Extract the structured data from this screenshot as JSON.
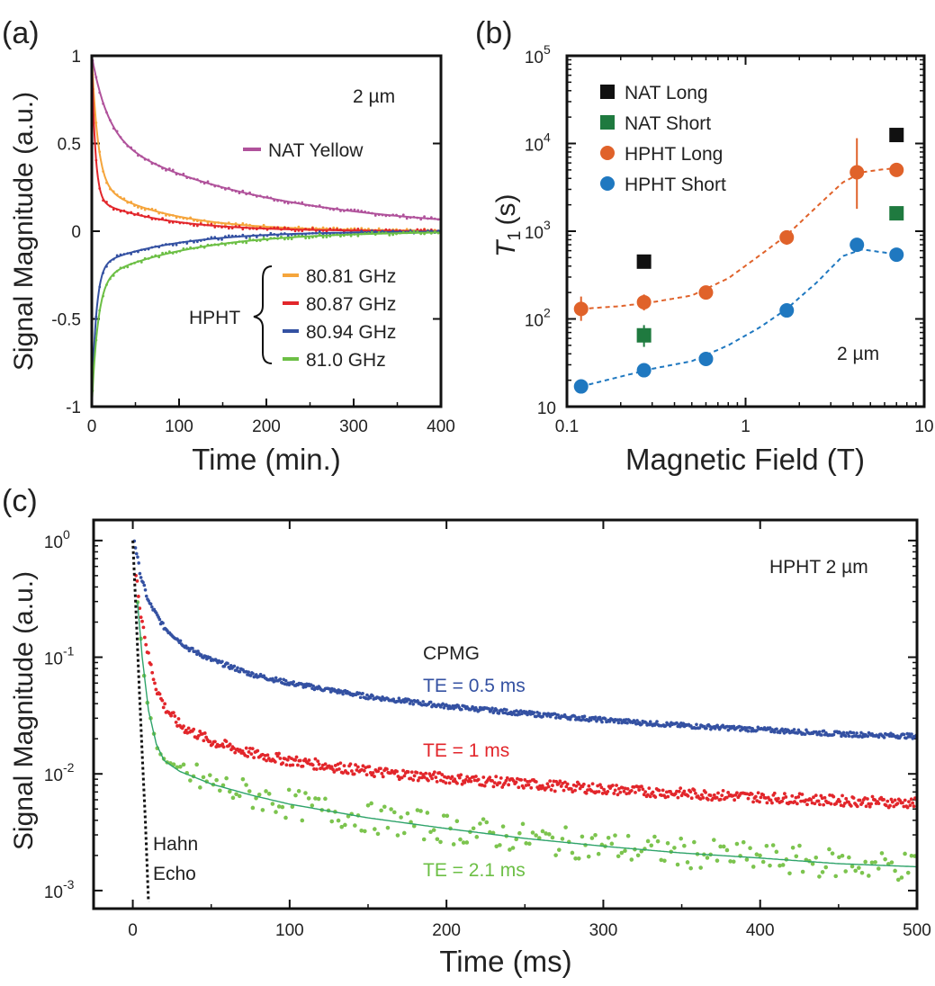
{
  "panels": {
    "a": {
      "label": "(a)"
    },
    "b": {
      "label": "(b)"
    },
    "c": {
      "label": "(c)"
    }
  },
  "chart_data": [
    {
      "id": "a",
      "type": "line",
      "xlabel": "Time (min.)",
      "ylabel": "Signal Magnitude (a.u.)",
      "xlim": [
        0,
        400
      ],
      "ylim": [
        -1,
        1
      ],
      "xticks": [
        "0",
        "100",
        "200",
        "300",
        "400"
      ],
      "yticks": [
        "-1",
        "-0.5",
        "0",
        "0.5",
        "1"
      ],
      "ytick_values": [
        -1,
        -0.5,
        0,
        0.5,
        1
      ],
      "annotation": "2 µm",
      "group_label": "HPHT",
      "series": [
        {
          "name": "NAT Yellow",
          "color": "#b0529b",
          "a1": 0.45,
          "tau1": 18,
          "a2": 0.55,
          "tau2": 190
        },
        {
          "name": "80.81 GHz",
          "color": "#f5a53c",
          "a1": 0.73,
          "tau1": 7,
          "a2": 0.27,
          "tau2": 85
        },
        {
          "name": "80.87 GHz",
          "color": "#e2262b",
          "a1": 0.82,
          "tau1": 4,
          "a2": 0.18,
          "tau2": 80
        },
        {
          "name": "80.94 GHz",
          "color": "#3451a2",
          "a1": -0.8,
          "tau1": 5,
          "a2": -0.2,
          "tau2": 90
        },
        {
          "name": "81.0 GHz",
          "color": "#6cbf45",
          "a1": -0.72,
          "tau1": 7,
          "a2": -0.28,
          "tau2": 110
        }
      ]
    },
    {
      "id": "b",
      "type": "scatter",
      "xscale": "log",
      "yscale": "log",
      "xlabel": "Magnetic Field (T)",
      "ylabel_main": "T",
      "ylabel_sub": "1",
      "ylabel_unit": "(s)",
      "xlim": [
        0.1,
        10
      ],
      "ylim": [
        10,
        100000
      ],
      "xticks": [
        "0.1",
        "1",
        "10"
      ],
      "xtick_values": [
        0.1,
        1,
        10
      ],
      "yticks": [
        "10",
        "10",
        "10",
        "10",
        "10"
      ],
      "ytick_values": [
        10,
        100,
        1000,
        10000,
        100000
      ],
      "ytick_exps": [
        "",
        "2",
        "3",
        "4",
        "5"
      ],
      "annotation": "2 µm",
      "series": [
        {
          "name": "NAT Long",
          "color": "#111111",
          "marker": "square",
          "x": [
            0.27,
            7.0
          ],
          "y": [
            450,
            12500
          ]
        },
        {
          "name": "NAT Short",
          "color": "#1f7a3f",
          "marker": "square",
          "x": [
            0.27,
            7.0
          ],
          "y": [
            65,
            1600
          ],
          "err": [
            [
              48,
              85
            ],
            null
          ]
        },
        {
          "name": "HPHT Long",
          "color": "#e0622a",
          "marker": "circle",
          "x": [
            0.12,
            0.27,
            0.6,
            1.7,
            4.2,
            7.0
          ],
          "y": [
            130,
            155,
            200,
            850,
            4700,
            5000
          ],
          "err": [
            [
              95,
              180
            ],
            [
              125,
              190
            ],
            null,
            [
              700,
              1000
            ],
            [
              1800,
              11500
            ],
            null
          ]
        },
        {
          "name": "HPHT Short",
          "color": "#1f78c0",
          "marker": "circle",
          "x": [
            0.12,
            0.27,
            0.6,
            1.7,
            4.2,
            7.0
          ],
          "y": [
            17,
            26,
            35,
            125,
            700,
            540
          ],
          "err": [
            null,
            null,
            null,
            [
              105,
              150
            ],
            null,
            null
          ]
        }
      ],
      "fits": [
        {
          "series": "HPHT Long",
          "color": "#e0622a",
          "x": [
            0.12,
            0.2,
            0.3,
            0.5,
            0.8,
            1.2,
            1.7,
            2.5,
            3.5,
            4.5,
            6.0,
            7.0
          ],
          "y": [
            130,
            140,
            155,
            185,
            290,
            530,
            900,
            1900,
            3600,
            4700,
            5100,
            5200
          ]
        },
        {
          "series": "HPHT Short",
          "color": "#1f78c0",
          "x": [
            0.12,
            0.2,
            0.3,
            0.5,
            0.8,
            1.2,
            1.7,
            2.5,
            3.5,
            4.5,
            6.0,
            7.0
          ],
          "y": [
            17,
            22,
            27,
            33,
            50,
            80,
            130,
            260,
            520,
            620,
            570,
            550
          ]
        }
      ]
    },
    {
      "id": "c",
      "type": "scatter",
      "yscale": "log",
      "xlabel": "Time (ms)",
      "ylabel": "Signal Magnitude (a.u.)",
      "xlim": [
        -25,
        500
      ],
      "ylim": [
        0.0007,
        1.5
      ],
      "xticks": [
        "0",
        "100",
        "200",
        "300",
        "400",
        "500"
      ],
      "xtick_values": [
        0,
        100,
        200,
        300,
        400,
        500
      ],
      "yticks": [
        "10",
        "10",
        "10",
        "10"
      ],
      "ytick_values": [
        1,
        0.1,
        0.01,
        0.001
      ],
      "ytick_exps": [
        "0",
        "-1",
        "-2",
        "-3"
      ],
      "annotation": "HPHT 2 µm",
      "method_label": "CPMG",
      "hahn_label_1": "Hahn",
      "hahn_label_2": "Echo",
      "series": [
        {
          "name": "TE = 0.5 ms",
          "color": "#3451a2",
          "x": [
            1,
            5,
            10,
            20,
            35,
            50,
            75,
            100,
            150,
            200,
            250,
            300,
            350,
            400,
            450,
            500
          ],
          "y": [
            1.0,
            0.5,
            0.3,
            0.18,
            0.12,
            0.095,
            0.072,
            0.06,
            0.046,
            0.038,
            0.033,
            0.029,
            0.026,
            0.024,
            0.022,
            0.021
          ]
        },
        {
          "name": "TE = 1 ms",
          "color": "#e2262b",
          "x": [
            2,
            5,
            10,
            15,
            20,
            30,
            50,
            75,
            100,
            150,
            200,
            250,
            300,
            350,
            400,
            450,
            500
          ],
          "y": [
            0.5,
            0.25,
            0.1,
            0.055,
            0.038,
            0.026,
            0.019,
            0.015,
            0.013,
            0.0105,
            0.0092,
            0.0082,
            0.0074,
            0.0068,
            0.0063,
            0.0059,
            0.0056
          ]
        },
        {
          "name": "TE = 2.1 ms",
          "color": "#6cbf45",
          "x": [
            3,
            6,
            10,
            15,
            20,
            30,
            50,
            75,
            100,
            150,
            200,
            250,
            300,
            350,
            400,
            450,
            500
          ],
          "y": [
            0.3,
            0.1,
            0.035,
            0.018,
            0.013,
            0.0105,
            0.0082,
            0.0066,
            0.0055,
            0.0042,
            0.0034,
            0.0028,
            0.0024,
            0.0021,
            0.0019,
            0.0017,
            0.0016
          ]
        },
        {
          "name": "Hahn Echo",
          "color": "#111111",
          "x": [
            0,
            2,
            4,
            6,
            8,
            10
          ],
          "y": [
            1.0,
            0.25,
            0.06,
            0.015,
            0.004,
            0.0008
          ]
        }
      ]
    }
  ]
}
